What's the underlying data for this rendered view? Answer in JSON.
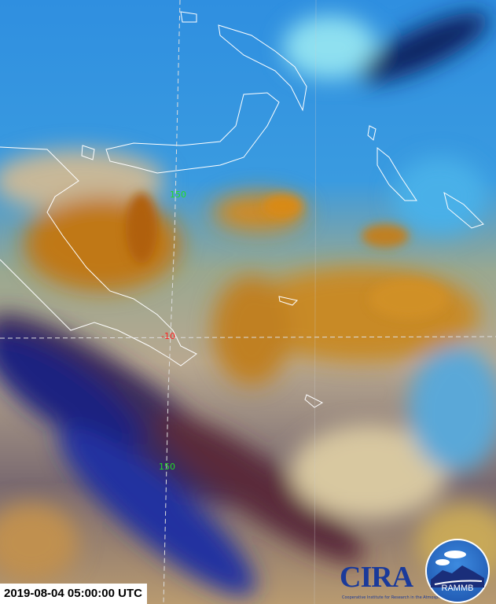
{
  "imagery": {
    "timestamp": "2019-08-04 05:00:00 UTC",
    "grid_labels": {
      "lon_top": "150",
      "lat": "-10",
      "lon_bottom": "150"
    },
    "colors": {
      "lon_label": "#22dd22",
      "lat_label": "#ff2020",
      "coastline": "#ffffff",
      "gridline": "#dddddd"
    },
    "logos": {
      "cira": "CIRA",
      "cira_tagline": "Cooperative Institute for Research in the Atmosphere",
      "rammb": "RAMMB"
    }
  }
}
